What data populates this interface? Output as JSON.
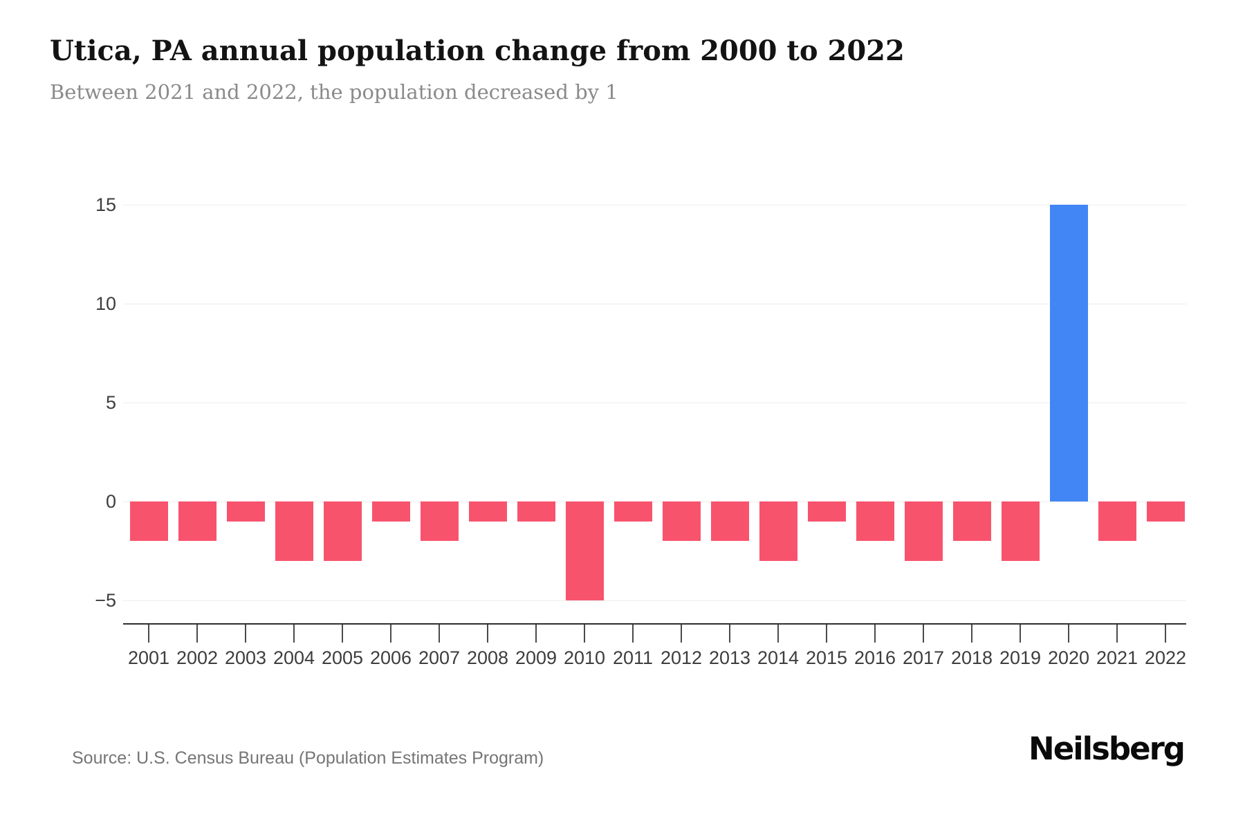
{
  "header": {
    "title": "Utica, PA annual population change from 2000 to 2022",
    "subtitle": "Between 2021 and 2022, the population decreased by 1"
  },
  "footer": {
    "source": "Source: U.S. Census Bureau (Population Estimates Program)",
    "brand": "Neilsberg"
  },
  "chart_data": {
    "type": "bar",
    "title": "Utica, PA annual population change from 2000 to 2022",
    "subtitle": "Between 2021 and 2022, the population decreased by 1",
    "categories": [
      "2001",
      "2002",
      "2003",
      "2004",
      "2005",
      "2006",
      "2007",
      "2008",
      "2009",
      "2010",
      "2011",
      "2012",
      "2013",
      "2014",
      "2015",
      "2016",
      "2017",
      "2018",
      "2019",
      "2020",
      "2021",
      "2022"
    ],
    "values": [
      -2,
      -2,
      -1,
      -3,
      -3,
      -1,
      -2,
      -1,
      -1,
      -5,
      -1,
      -2,
      -2,
      -3,
      -1,
      -2,
      -3,
      -2,
      -3,
      15,
      -2,
      -1
    ],
    "xlabel": "",
    "ylabel": "",
    "ylim": [
      -5,
      15
    ],
    "ytick_labels": [
      "15",
      "10",
      "5",
      "0",
      "−5"
    ],
    "ytick_values": [
      15,
      10,
      5,
      0,
      -5
    ],
    "grid": "horizontal",
    "legend_position": "none",
    "colors": {
      "negative_bar": "#F8536D",
      "positive_bar": "#4285F4",
      "gridline": "#EDEDED",
      "axis_line": "#2F2F2F",
      "tick_label": "#3D3D3D",
      "title": "#131313",
      "subtitle": "#8A8A8A",
      "source": "#757575",
      "brand": "#0A0A0A"
    }
  }
}
